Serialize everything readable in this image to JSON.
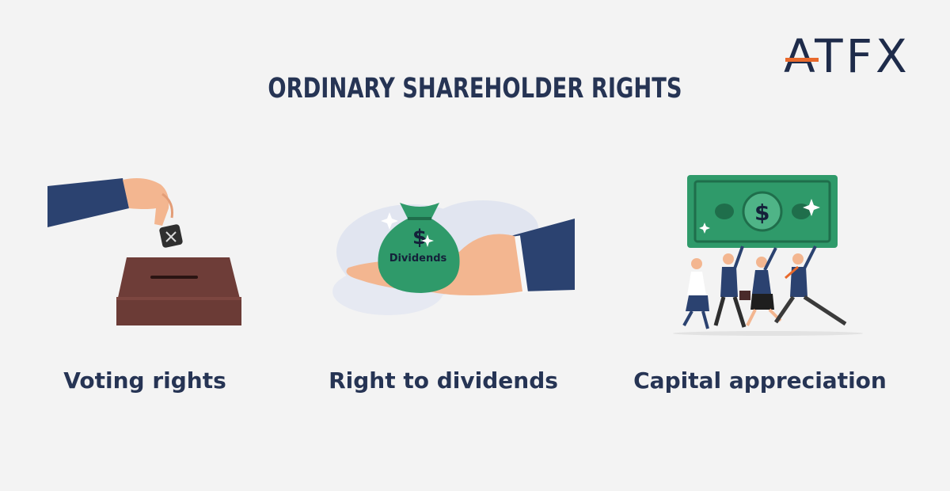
{
  "brand": {
    "logo_text": "ATFX"
  },
  "title": "ORDINARY SHAREHOLDER RIGHTS",
  "rights": [
    {
      "label": "Voting rights"
    },
    {
      "label": "Right to dividends",
      "bag_text": "Dividends"
    },
    {
      "label": "Capital appreciation"
    }
  ],
  "colors": {
    "background": "#f3f3f3",
    "navy": "#263454",
    "orange": "#e8692c",
    "green": "#2f9a6a",
    "ballot_box": "#6e3d38"
  }
}
